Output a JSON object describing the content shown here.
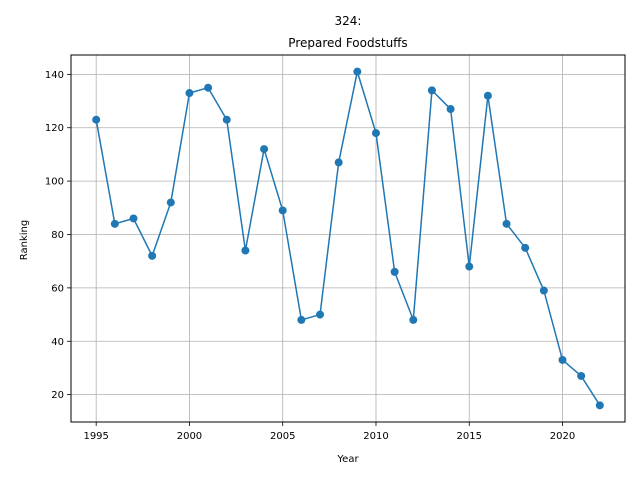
{
  "chart_data": {
    "type": "line",
    "title_line1": "324:",
    "title_line2": "Prepared Foodstuffs",
    "xlabel": "Year",
    "ylabel": "Ranking",
    "xlim": [
      1993.65,
      1995.0
    ],
    "xlim_full": [
      1993.65,
      2023.35
    ],
    "ylim": [
      9.75,
      147.25
    ],
    "xticks": [
      1995,
      2000,
      2005,
      2010,
      2015,
      2020
    ],
    "yticks": [
      20,
      40,
      60,
      80,
      100,
      120,
      140
    ],
    "grid": true,
    "line_color": "#1f77b4",
    "x": [
      1995,
      1996,
      1997,
      1998,
      1999,
      2000,
      2001,
      2002,
      2003,
      2004,
      2005,
      2006,
      2007,
      2008,
      2009,
      2010,
      2011,
      2012,
      2013,
      2014,
      2015,
      2016,
      2017,
      2018,
      2019,
      2020,
      2021,
      2022
    ],
    "y": [
      123,
      84,
      86,
      72,
      92,
      133,
      135,
      123,
      74,
      112,
      89,
      48,
      50,
      107,
      141,
      118,
      66,
      48,
      134,
      127,
      68,
      132,
      84,
      75,
      59,
      33,
      27,
      16
    ]
  }
}
